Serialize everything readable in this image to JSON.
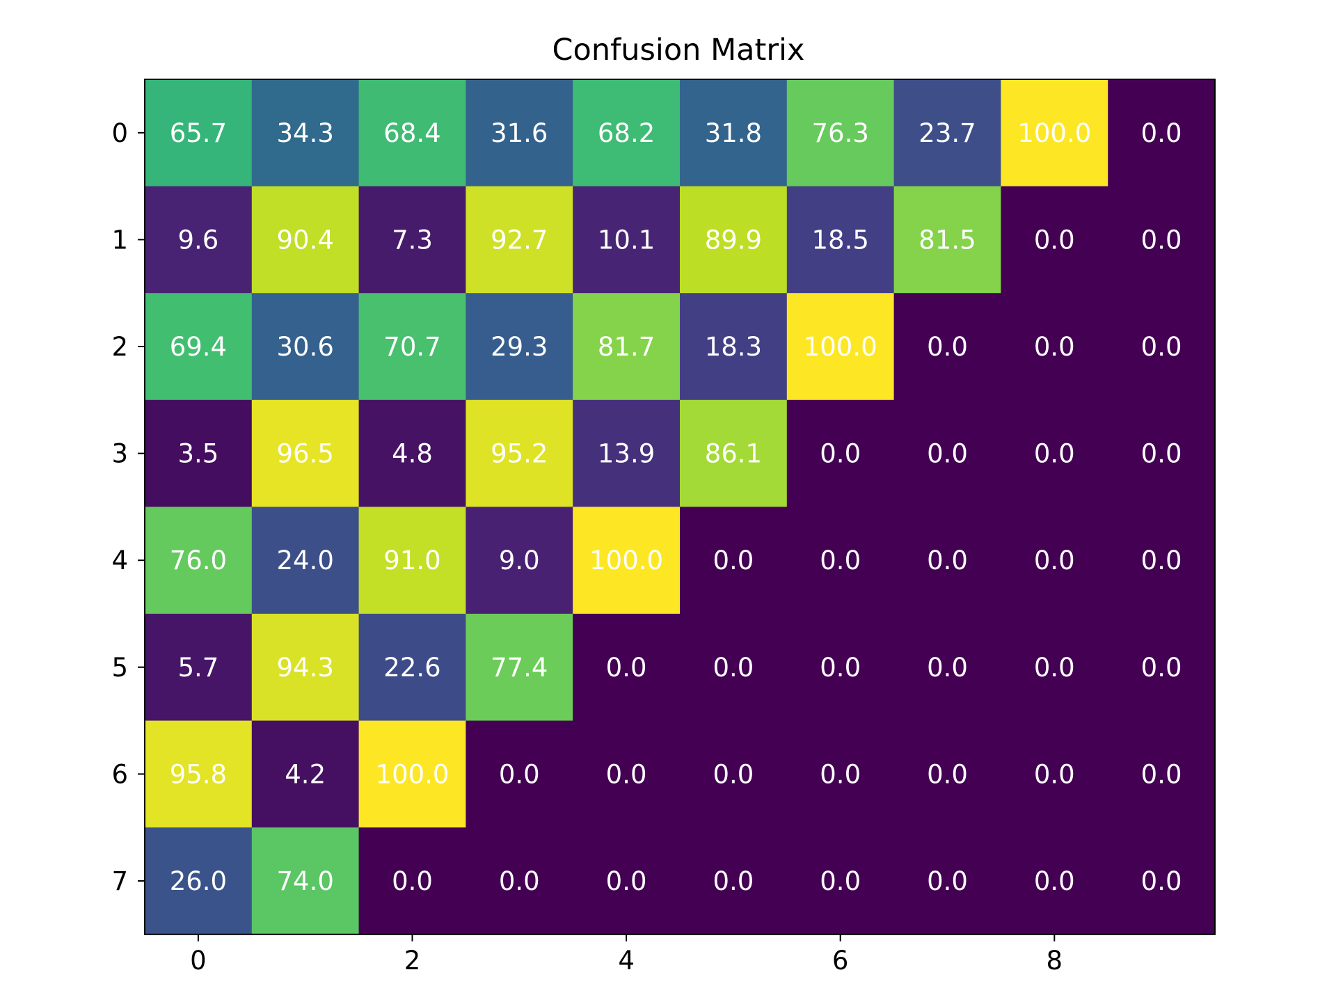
{
  "chart_data": {
    "type": "heatmap",
    "title": "Confusion Matrix",
    "xlabel": "",
    "ylabel": "",
    "colormap": "viridis",
    "vmin": 0,
    "vmax": 100,
    "n_rows": 8,
    "n_cols": 10,
    "x_ticks": [
      0,
      2,
      4,
      6,
      8
    ],
    "y_ticks": [
      0,
      1,
      2,
      3,
      4,
      5,
      6,
      7
    ],
    "text_color": "#ffffff",
    "values": [
      [
        65.7,
        34.3,
        68.4,
        31.6,
        68.2,
        31.8,
        76.3,
        23.7,
        100.0,
        0.0
      ],
      [
        9.6,
        90.4,
        7.3,
        92.7,
        10.1,
        89.9,
        18.5,
        81.5,
        0.0,
        0.0
      ],
      [
        69.4,
        30.6,
        70.7,
        29.3,
        81.7,
        18.3,
        100.0,
        0.0,
        0.0,
        0.0
      ],
      [
        3.5,
        96.5,
        4.8,
        95.2,
        13.9,
        86.1,
        0.0,
        0.0,
        0.0,
        0.0
      ],
      [
        76.0,
        24.0,
        91.0,
        9.0,
        100.0,
        0.0,
        0.0,
        0.0,
        0.0,
        0.0
      ],
      [
        5.7,
        94.3,
        22.6,
        77.4,
        0.0,
        0.0,
        0.0,
        0.0,
        0.0,
        0.0
      ],
      [
        95.8,
        4.2,
        100.0,
        0.0,
        0.0,
        0.0,
        0.0,
        0.0,
        0.0,
        0.0
      ],
      [
        26.0,
        74.0,
        0.0,
        0.0,
        0.0,
        0.0,
        0.0,
        0.0,
        0.0,
        0.0
      ]
    ]
  }
}
